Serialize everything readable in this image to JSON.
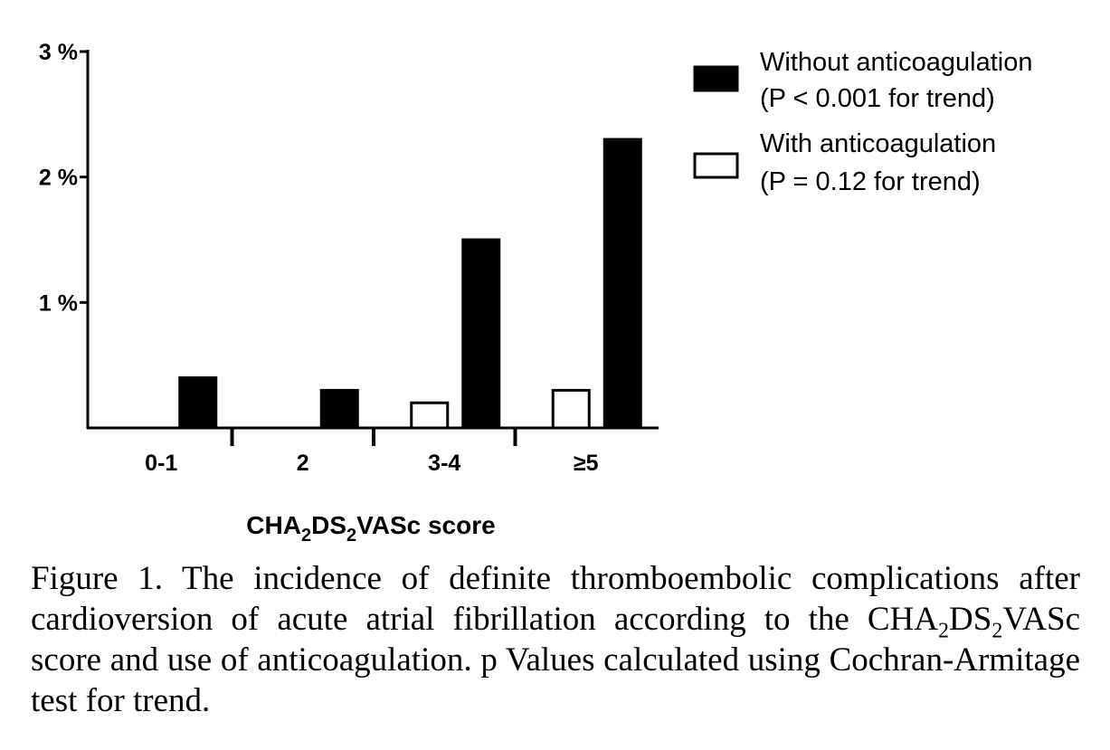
{
  "chart_data": {
    "type": "bar",
    "categories": [
      "0-1",
      "2",
      "3-4",
      "≥5"
    ],
    "series": [
      {
        "name": "Without anticoagulation",
        "note": "(P < 0.001 for trend)",
        "fill": "#000000",
        "values": [
          0.4,
          0.3,
          1.5,
          2.3
        ]
      },
      {
        "name": "With anticoagulation",
        "note": "(P = 0.12 for trend)",
        "fill": "#ffffff",
        "values": [
          0,
          0,
          0.2,
          0.3
        ]
      }
    ],
    "yticks": [
      "1 %",
      "2 %",
      "3 %"
    ],
    "ylim": [
      0,
      3
    ],
    "xlabel": {
      "pre": "CHA",
      "sub1": "2",
      "mid": "DS",
      "sub2": "2",
      "post": "VASc score"
    },
    "legend_position": "top-right"
  },
  "caption": {
    "part1": "Figure 1. The incidence of definite thromboembolic complications after cardioversion of acute atrial fibrillation according to the CHA",
    "sub1": "2",
    "part2": "DS",
    "sub2": "2",
    "part3": "VASc score and use of anticoagulation. p Values calculated using Cochran-Armitage test for trend."
  }
}
